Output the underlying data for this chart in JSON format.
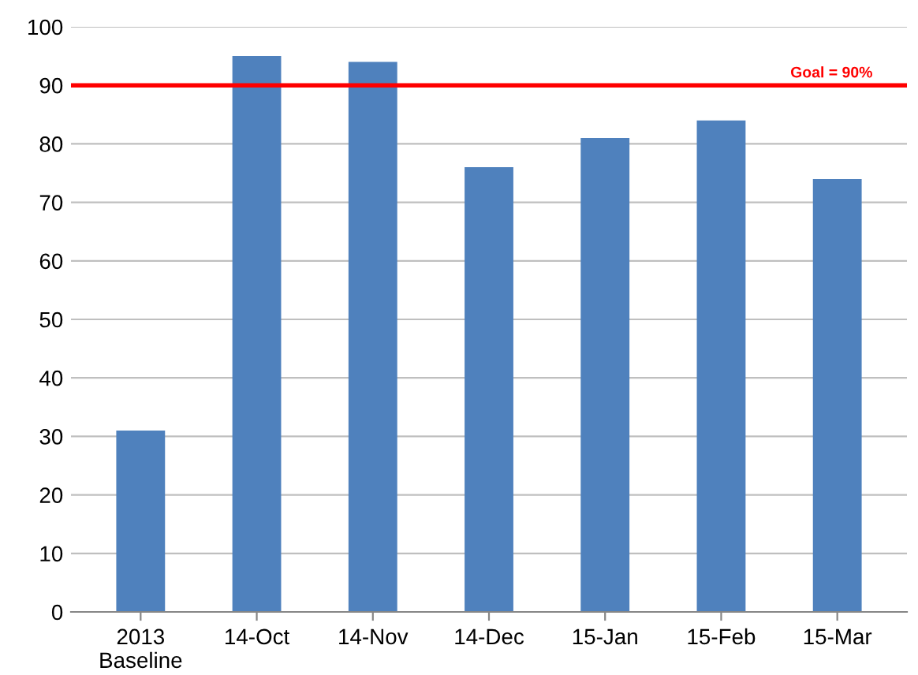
{
  "chart_data": {
    "type": "bar",
    "categories": [
      "2013\nBaseline",
      "14-Oct",
      "14-Nov",
      "14-Dec",
      "15-Jan",
      "15-Feb",
      "15-Mar"
    ],
    "values": [
      31,
      95,
      94,
      76,
      81,
      84,
      74
    ],
    "color": "#4f81bd",
    "ylim": [
      0,
      100
    ],
    "yticks": [
      0,
      10,
      20,
      30,
      40,
      50,
      60,
      70,
      80,
      90,
      100
    ],
    "grid": "y",
    "ref_lines": [
      {
        "axis": "y",
        "value": 90,
        "label": "Goal = 90%",
        "color": "#ff0000",
        "line_style": "solid"
      }
    ]
  }
}
